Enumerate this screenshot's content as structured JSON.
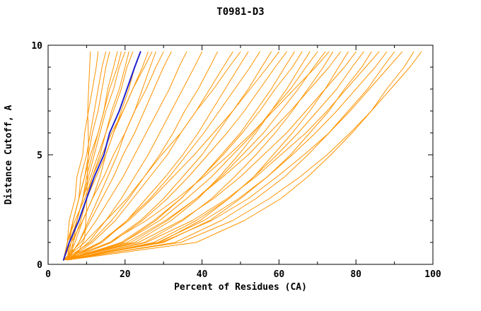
{
  "chart_data": {
    "type": "line",
    "title": "T0981-D3",
    "xlabel": "Percent of Residues (CA)",
    "ylabel": "Distance Cutoff, A",
    "xlim": [
      0,
      100
    ],
    "ylim": [
      0,
      10
    ],
    "xticks": {
      "major": [
        0,
        20,
        40,
        60,
        80,
        100
      ],
      "labels": [
        "0",
        "20",
        "40",
        "60",
        "80",
        "100"
      ],
      "minor_step": 10
    },
    "yticks": {
      "major": [
        0,
        5,
        10
      ],
      "labels": [
        "0",
        "5",
        "10"
      ],
      "minor_step": 1
    },
    "grid": false,
    "legend": "none",
    "colors": {
      "model": "#ff9400",
      "highlight": "#2222cc",
      "axis": "#000000",
      "background": "#ffffff"
    },
    "y_samples": [
      0.2,
      1,
      2,
      3,
      4,
      5,
      6,
      7,
      8,
      9,
      9.7
    ],
    "series": [
      {
        "role": "model",
        "color": "model",
        "width": 1,
        "y": [
          0.2,
          0.6,
          1.2,
          2.5,
          4,
          5.5,
          7,
          8.3,
          9.7
        ],
        "x": [
          5,
          8,
          9.5,
          10,
          10.2,
          10.5,
          10.3,
          10.6,
          11
        ]
      },
      {
        "role": "model",
        "color": "model",
        "width": 1,
        "x": [
          4,
          5,
          5.5,
          7,
          7.5,
          9,
          9.5,
          10.5,
          11.5,
          12.5,
          13
        ]
      },
      {
        "role": "model",
        "color": "model",
        "width": 1,
        "x": [
          5,
          5.5,
          6.5,
          8,
          8.5,
          10,
          11,
          12,
          13,
          14,
          15
        ]
      },
      {
        "role": "model",
        "color": "model",
        "width": 1,
        "x": [
          4,
          5.5,
          6.5,
          8,
          9.5,
          10.5,
          11.5,
          13,
          14,
          15,
          16
        ]
      },
      {
        "role": "model",
        "color": "model",
        "width": 1,
        "x": [
          5,
          6,
          7.5,
          9,
          10,
          11.5,
          13,
          14.5,
          15.5,
          17,
          18
        ]
      },
      {
        "role": "model",
        "color": "model",
        "width": 1,
        "x": [
          4,
          5,
          6.5,
          8,
          9.5,
          11,
          13,
          14.5,
          16,
          18,
          19
        ]
      },
      {
        "role": "model",
        "color": "model",
        "width": 1,
        "x": [
          5,
          6.5,
          8.5,
          10,
          11.5,
          13.5,
          15,
          16.5,
          18.5,
          20,
          21
        ]
      },
      {
        "role": "model",
        "color": "model",
        "width": 1,
        "x": [
          4,
          5.5,
          7.5,
          9,
          11,
          13,
          15,
          17,
          19,
          20.5,
          22
        ]
      },
      {
        "role": "model",
        "color": "model",
        "width": 1,
        "x": [
          5,
          7,
          9,
          11.5,
          13.5,
          15,
          17,
          19,
          21,
          22.5,
          24
        ]
      },
      {
        "role": "model",
        "color": "model",
        "width": 1,
        "x": [
          4,
          5.5,
          8,
          10,
          12.5,
          15,
          17,
          19.5,
          22,
          24.5,
          26
        ]
      },
      {
        "role": "model",
        "color": "model",
        "width": 1,
        "x": [
          5,
          8,
          10.5,
          13,
          15.5,
          18,
          20,
          22.5,
          24.5,
          26.5,
          28
        ]
      },
      {
        "role": "model",
        "color": "model",
        "width": 1,
        "x": [
          4,
          6,
          9,
          11.5,
          14.5,
          17,
          20,
          22.5,
          25.5,
          28,
          30
        ]
      },
      {
        "role": "model",
        "color": "model",
        "width": 1,
        "x": [
          5,
          8,
          11,
          14,
          17,
          19.5,
          22.5,
          25,
          27.5,
          30,
          32
        ]
      },
      {
        "role": "model",
        "color": "model",
        "width": 1,
        "x": [
          4,
          5,
          7,
          9.5,
          11.5,
          14,
          16.5,
          19.5,
          22,
          25,
          27
        ]
      },
      {
        "role": "model",
        "color": "model",
        "width": 1,
        "x": [
          6,
          6.5,
          7.5,
          9,
          10.5,
          12,
          13.5,
          15,
          17,
          18.5,
          20
        ]
      },
      {
        "role": "model",
        "color": "model",
        "width": 1,
        "x": [
          4,
          8.5,
          12.5,
          16,
          19.5,
          22.5,
          25.5,
          28.5,
          31.5,
          34,
          36
        ]
      },
      {
        "role": "model",
        "color": "model",
        "width": 1,
        "x": [
          5,
          10.5,
          15,
          19,
          22.5,
          26,
          29,
          32,
          35,
          38,
          40
        ]
      },
      {
        "role": "model",
        "color": "model",
        "width": 1,
        "x": [
          4,
          11,
          16.5,
          21,
          25,
          29,
          32.5,
          35.5,
          39,
          42,
          44
        ]
      },
      {
        "role": "model",
        "color": "model",
        "width": 1,
        "x": [
          5,
          11.5,
          17.5,
          22,
          26.5,
          31,
          34.5,
          38.5,
          42,
          45.5,
          48
        ]
      },
      {
        "role": "model",
        "color": "model",
        "width": 1,
        "x": [
          4,
          13.5,
          20.5,
          25.5,
          30.5,
          35,
          39,
          42.5,
          46,
          49.5,
          52
        ]
      },
      {
        "role": "model",
        "color": "model",
        "width": 1,
        "x": [
          5,
          14,
          20.5,
          26.5,
          31.5,
          36,
          40.5,
          44.5,
          48.5,
          52.5,
          55
        ]
      },
      {
        "role": "model",
        "color": "model",
        "width": 1,
        "x": [
          4,
          9.5,
          15,
          20.5,
          25,
          29.5,
          34.5,
          38.5,
          43,
          47,
          50
        ]
      },
      {
        "role": "model",
        "color": "model",
        "width": 1,
        "x": [
          4,
          16,
          24,
          30,
          35,
          40,
          44,
          48,
          52,
          55.5,
          58
        ]
      },
      {
        "role": "model",
        "color": "model",
        "width": 1,
        "x": [
          5,
          16.5,
          24.5,
          31,
          36.5,
          41.5,
          46.5,
          51,
          55,
          59,
          62
        ]
      },
      {
        "role": "model",
        "color": "model",
        "width": 1,
        "x": [
          4,
          19.5,
          28,
          34.5,
          40,
          45,
          50,
          54,
          58,
          61.5,
          64
        ]
      },
      {
        "role": "model",
        "color": "model",
        "width": 1,
        "x": [
          5,
          19,
          27.5,
          34.5,
          40,
          45.5,
          50.5,
          55,
          59,
          63.5,
          66
        ]
      },
      {
        "role": "model",
        "color": "model",
        "width": 1,
        "x": [
          4,
          22.5,
          32,
          39,
          44.5,
          49.5,
          54,
          58,
          62,
          65.5,
          68
        ]
      },
      {
        "role": "model",
        "color": "model",
        "width": 1,
        "x": [
          5,
          19.5,
          29,
          36,
          42.5,
          48,
          53.5,
          58,
          63,
          67,
          70
        ]
      },
      {
        "role": "model",
        "color": "model",
        "width": 1,
        "x": [
          4,
          21.5,
          31,
          38.5,
          45,
          50.5,
          56,
          60.5,
          65,
          69,
          72
        ]
      },
      {
        "role": "model",
        "color": "model",
        "width": 1,
        "x": [
          5,
          25,
          35,
          42.5,
          48.5,
          54,
          59,
          63.5,
          67.5,
          71.5,
          74
        ]
      },
      {
        "role": "model",
        "color": "model",
        "width": 1,
        "x": [
          4,
          20.5,
          30.5,
          38.5,
          45.5,
          52,
          57.5,
          63,
          68,
          73,
          76
        ]
      },
      {
        "role": "model",
        "color": "model",
        "width": 1,
        "x": [
          5,
          29,
          39.5,
          47,
          53.5,
          58.5,
          63.5,
          68,
          72,
          75.5,
          78
        ]
      },
      {
        "role": "model",
        "color": "model",
        "width": 1,
        "x": [
          4,
          23.5,
          34.5,
          43,
          50,
          56,
          62,
          67,
          72,
          77,
          80
        ]
      },
      {
        "role": "model",
        "color": "model",
        "width": 1,
        "x": [
          5,
          27.5,
          38.5,
          47,
          53.5,
          59.5,
          65,
          70,
          75,
          79,
          82
        ]
      },
      {
        "role": "model",
        "color": "model",
        "width": 1,
        "x": [
          4,
          30,
          42,
          50,
          57,
          63,
          68,
          73,
          77,
          81.5,
          84
        ]
      },
      {
        "role": "model",
        "color": "model",
        "width": 1,
        "x": [
          5,
          25.5,
          37.5,
          46.5,
          54,
          60.5,
          67,
          72.5,
          77.5,
          82.5,
          86
        ]
      },
      {
        "role": "model",
        "color": "model",
        "width": 1,
        "x": [
          4,
          28.5,
          40.5,
          49.5,
          57,
          63.5,
          69.5,
          75,
          80,
          85,
          88
        ]
      },
      {
        "role": "model",
        "color": "model",
        "width": 1,
        "x": [
          5,
          33,
          45,
          54,
          61.5,
          67.5,
          73,
          78,
          83,
          87,
          90
        ]
      },
      {
        "role": "model",
        "color": "model",
        "width": 1,
        "x": [
          4,
          29.5,
          42.5,
          52,
          59.5,
          66.5,
          73,
          78.5,
          83.5,
          88.5,
          92
        ]
      },
      {
        "role": "model",
        "color": "model",
        "width": 1,
        "x": [
          5,
          38.5,
          51,
          60.5,
          67.5,
          73.5,
          79,
          84,
          88,
          92.5,
          95
        ]
      },
      {
        "role": "model",
        "color": "model",
        "width": 1,
        "x": [
          4,
          34.5,
          48,
          57.5,
          65.5,
          72.5,
          78.5,
          84,
          89,
          94,
          97
        ]
      },
      {
        "role": "model",
        "color": "model",
        "width": 1,
        "x": [
          5,
          13.5,
          21,
          27,
          32.5,
          38,
          43,
          48,
          52.5,
          57,
          60
        ]
      },
      {
        "role": "model",
        "color": "model",
        "width": 1,
        "x": [
          4,
          16,
          25.5,
          33.5,
          40.5,
          47,
          53,
          58.5,
          64,
          69.5,
          73
        ]
      },
      {
        "role": "highlighted-model",
        "color": "highlight",
        "width": 2,
        "x": [
          4,
          5.5,
          8,
          10,
          12,
          14.5,
          16,
          18.5,
          20.5,
          22.5,
          24
        ]
      }
    ]
  }
}
